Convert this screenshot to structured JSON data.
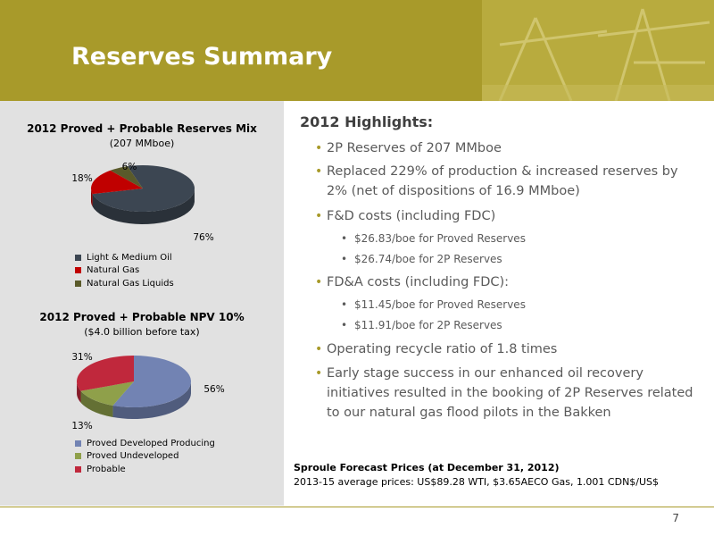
{
  "header": {
    "title": "Reserves Summary",
    "band_color": "#a89a2a"
  },
  "reserves_mix_chart": {
    "title": "2012 Proved + Probable Reserves Mix",
    "subtitle": "(207 MMboe)",
    "chart_data": {
      "type": "pie",
      "categories": [
        "Light & Medium Oil",
        "Natural Gas",
        "Natural Gas Liquids"
      ],
      "values": [
        76,
        18,
        6
      ],
      "value_labels": [
        "76%",
        "18%",
        "6%"
      ],
      "colors": [
        "#3c4652",
        "#c00000",
        "#5a5a2a"
      ],
      "legend": "bottom"
    }
  },
  "npv_chart": {
    "title": "2012 Proved + Probable NPV 10%",
    "subtitle": "($4.0 billion before tax)",
    "chart_data": {
      "type": "pie",
      "categories": [
        "Proved Developed Producing",
        "Proved Undeveloped",
        "Probable"
      ],
      "values": [
        56,
        13,
        31
      ],
      "value_labels": [
        "56%",
        "13%",
        "31%"
      ],
      "colors": [
        "#7283b3",
        "#8fa04a",
        "#c0283c"
      ],
      "legend": "bottom"
    }
  },
  "highlights": {
    "title": "2012 Highlights:",
    "items": [
      {
        "text": "2P Reserves of 207 MMboe"
      },
      {
        "text": "Replaced 229% of production & increased reserves by 2% (net of dispositions of 16.9 MMboe)"
      },
      {
        "text": "F&D costs (including FDC)",
        "sub": [
          "$26.83/boe for Proved Reserves",
          "$26.74/boe for 2P Reserves"
        ]
      },
      {
        "text": "FD&A costs (including FDC):",
        "sub": [
          "$11.45/boe for Proved Reserves",
          "$11.91/boe for 2P Reserves"
        ]
      },
      {
        "text": "Operating recycle ratio of 1.8 times"
      },
      {
        "text": "Early stage success in our enhanced oil recovery initiatives resulted in the booking of 2P Reserves related to our natural gas flood pilots in the Bakken"
      }
    ]
  },
  "note": {
    "title": "Sproule Forecast Prices (at December 31, 2012)",
    "body": "2013-15 average prices: US$89.28 WTI, $3.65AECO Gas, 1.001 CDN$/US$"
  },
  "page_number": "7"
}
